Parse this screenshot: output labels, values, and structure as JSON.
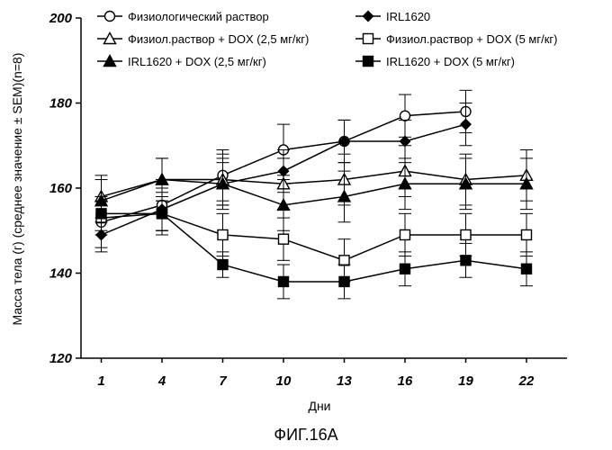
{
  "chart_data": {
    "type": "line",
    "xlabel": "Дни",
    "ylabel": "Масса тела (г) (среднее значение ± SEM)(n=8)",
    "caption": "ФИГ.16А",
    "x": [
      1,
      4,
      7,
      10,
      13,
      16,
      19,
      22
    ],
    "xlim": [
      0,
      24
    ],
    "ylim": [
      120,
      200
    ],
    "yticks": [
      120,
      140,
      160,
      180,
      200
    ],
    "grid": false,
    "legend_position": "top",
    "series": [
      {
        "name": "Физиологический раствор",
        "marker": "circle-open",
        "x": [
          1,
          4,
          7,
          10,
          13,
          16,
          19
        ],
        "y": [
          152,
          156,
          163,
          169,
          171,
          177,
          178
        ],
        "error": [
          6,
          6,
          6,
          6,
          5,
          5,
          5
        ]
      },
      {
        "name": "IRL1620",
        "marker": "diamond-filled",
        "x": [
          1,
          4,
          7,
          10,
          13,
          16,
          19
        ],
        "y": [
          149,
          155,
          161,
          164,
          171,
          171,
          175
        ],
        "error": [
          4,
          5,
          5,
          5,
          5,
          5,
          5
        ]
      },
      {
        "name": "Физиол.раствор + DOX (2,5 мг/кг)",
        "marker": "triangle-open",
        "x": [
          1,
          4,
          7,
          10,
          13,
          16,
          19,
          22
        ],
        "y": [
          158,
          162,
          162,
          161,
          162,
          164,
          162,
          163
        ],
        "error": [
          5,
          5,
          6,
          6,
          6,
          6,
          6,
          6
        ]
      },
      {
        "name": "Физиол.раствор + DOX (5 мг/кг)",
        "marker": "square-open",
        "x": [
          1,
          4,
          7,
          10,
          13,
          16,
          19,
          22
        ],
        "y": [
          153,
          154,
          149,
          148,
          143,
          149,
          149,
          149
        ],
        "error": [
          4,
          5,
          5,
          5,
          5,
          5,
          5,
          5
        ]
      },
      {
        "name": "IRL1620 + DOX (2,5 мг/кг)",
        "marker": "triangle-filled",
        "x": [
          1,
          4,
          7,
          10,
          13,
          16,
          19,
          22
        ],
        "y": [
          157,
          162,
          161,
          156,
          158,
          161,
          161,
          161
        ],
        "error": [
          5,
          5,
          6,
          6,
          6,
          6,
          6,
          6
        ]
      },
      {
        "name": "IRL1620 + DOX (5 мг/кг)",
        "marker": "square-filled",
        "x": [
          1,
          4,
          7,
          10,
          13,
          16,
          19,
          22
        ],
        "y": [
          154,
          154,
          142,
          138,
          138,
          141,
          143,
          141
        ],
        "error": [
          4,
          4,
          3,
          4,
          4,
          4,
          4,
          4
        ]
      }
    ]
  }
}
